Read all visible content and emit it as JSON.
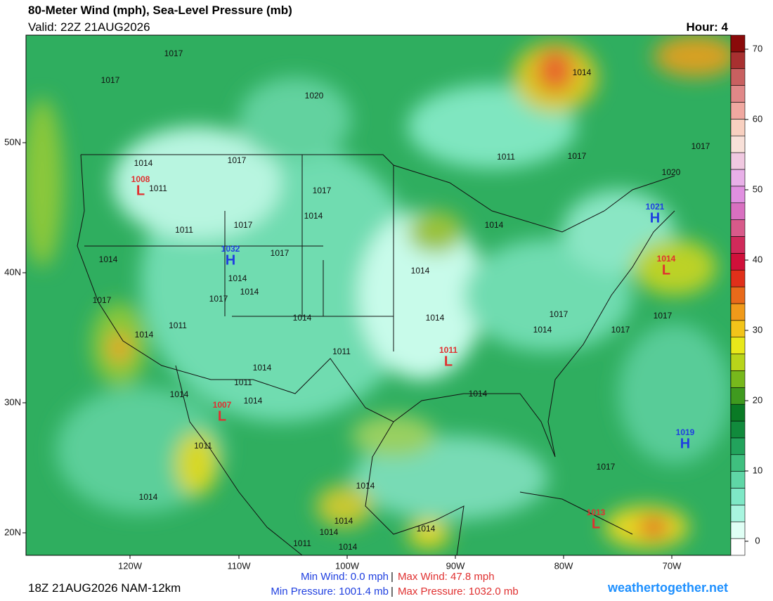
{
  "header": {
    "title": "80-Meter Wind (mph), Sea-Level Pressure (mb)",
    "valid": "Valid: 22Z 21AUG2026",
    "hour": "Hour: 4"
  },
  "map": {
    "lat_labels": [
      "50N",
      "40N",
      "30N",
      "20N"
    ],
    "lon_labels": [
      "120W",
      "110W",
      "100W",
      "90W",
      "80W",
      "70W"
    ],
    "lows": [
      {
        "symbol": "L",
        "value": "1008"
      },
      {
        "symbol": "L",
        "value": "1011"
      },
      {
        "symbol": "L",
        "value": "1007"
      },
      {
        "symbol": "L",
        "value": "1014"
      },
      {
        "symbol": "L",
        "value": "1013"
      }
    ],
    "highs": [
      {
        "symbol": "H",
        "value": "1021"
      },
      {
        "symbol": "H",
        "value": "1019"
      },
      {
        "symbol": "H",
        "value": "1032"
      }
    ],
    "isobar_labels": [
      "1017",
      "1017",
      "1020",
      "1014",
      "1014",
      "1017",
      "1011",
      "1017",
      "1011",
      "1017",
      "1017",
      "1020",
      "1014",
      "1017",
      "1011",
      "1014",
      "1017",
      "1014",
      "1014",
      "1014",
      "1014",
      "1017",
      "1017",
      "1014",
      "1014",
      "1017",
      "1014",
      "1017",
      "1017",
      "1011",
      "1014",
      "1011",
      "1014",
      "1011",
      "1014",
      "1014",
      "1014",
      "1011",
      "1017",
      "1014",
      "1014",
      "1014",
      "1014",
      "1014",
      "1011",
      "1014"
    ]
  },
  "colorbar": {
    "range": [
      -2,
      72
    ],
    "ticks": [
      0,
      10,
      20,
      30,
      40,
      50,
      60,
      70
    ],
    "colors": [
      "#ffffff",
      "#e0fff5",
      "#a8f5df",
      "#7ee8c6",
      "#5fd6a6",
      "#3fbf7f",
      "#22a35c",
      "#118a3c",
      "#0a7a25",
      "#3f9a1f",
      "#77b81c",
      "#b8d41a",
      "#e8e81a",
      "#f2c41a",
      "#f09a1a",
      "#e86a1a",
      "#e0301a",
      "#d0103a",
      "#d02a5a",
      "#d85a8a",
      "#d870c0",
      "#e090e0",
      "#e8b0e8",
      "#f0c8e0",
      "#f8e0d8",
      "#f8d0c0",
      "#f0a8a0",
      "#e08888",
      "#c86060",
      "#a83030",
      "#8a0a0a"
    ]
  },
  "footer": {
    "run": "18Z 21AUG2026 NAM-12km",
    "min_wind": "Min Wind:  0.0 mph",
    "max_wind": "Max Wind:  47.8 mph",
    "min_pressure": "Min Pressure: 1001.4 mb",
    "max_pressure": "Max Pressure: 1032.0 mb",
    "separator": "|",
    "site": "weathertogether.net"
  }
}
